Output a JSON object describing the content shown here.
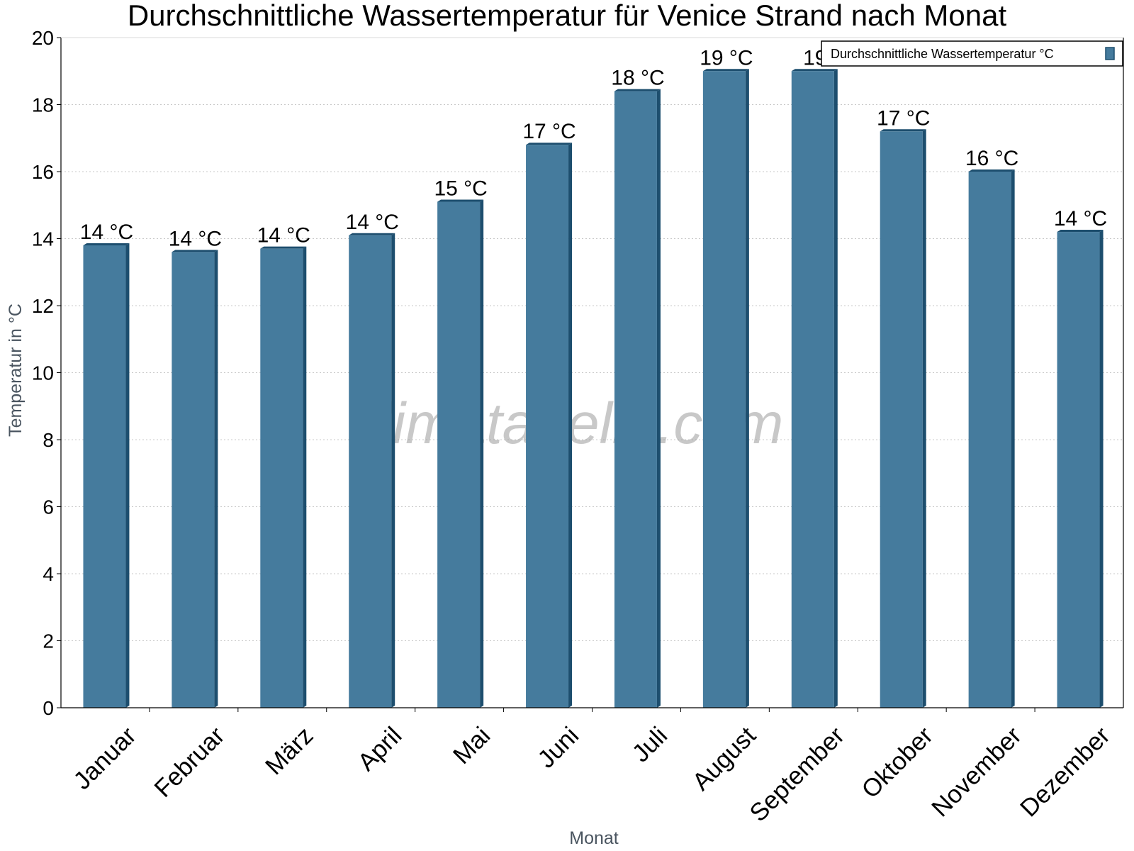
{
  "chart_data": {
    "type": "bar",
    "title": "Durchschnittliche Wassertemperatur für Venice Strand nach Monat",
    "xlabel": "Monat",
    "ylabel": "Temperatur in °C",
    "ylim": [
      0,
      20
    ],
    "yticks": [
      0,
      2,
      4,
      6,
      8,
      10,
      12,
      14,
      16,
      18,
      20
    ],
    "grid": true,
    "legend_position": "top-right",
    "categories": [
      "Januar",
      "Februar",
      "März",
      "April",
      "Mai",
      "Juni",
      "Juli",
      "August",
      "September",
      "Oktober",
      "November",
      "Dezember"
    ],
    "series": [
      {
        "name": "Durchschnittliche Wassertemperatur °C",
        "color": "#457b9d",
        "edge_color": "#1d4e6e",
        "values": [
          13.8,
          13.6,
          13.7,
          14.1,
          15.1,
          16.8,
          18.4,
          19.0,
          19.0,
          17.2,
          16.0,
          14.2
        ],
        "data_labels": [
          "14 °C",
          "14 °C",
          "14 °C",
          "14 °C",
          "15 °C",
          "17 °C",
          "18 °C",
          "19 °C",
          "19",
          "17 °C",
          "16 °C",
          "14 °C"
        ]
      }
    ]
  },
  "watermark": "klimatabelle.com"
}
